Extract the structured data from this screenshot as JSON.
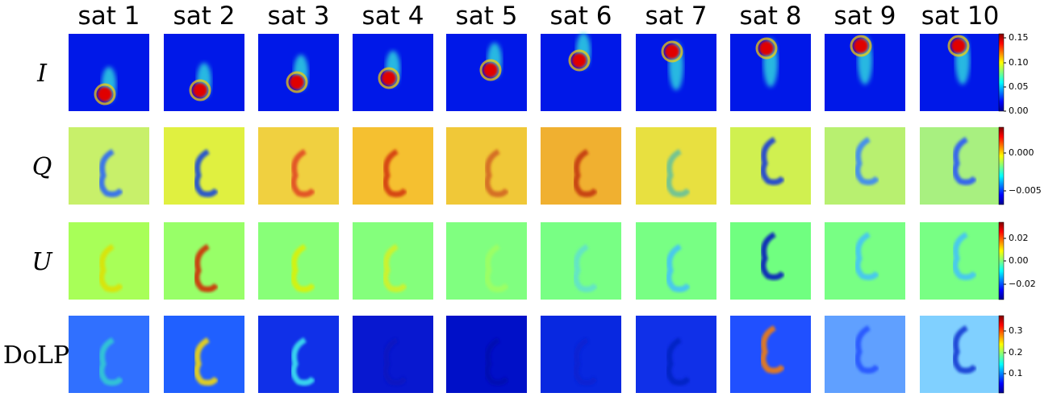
{
  "columns": [
    "sat 1",
    "sat 2",
    "sat 3",
    "sat 4",
    "sat 5",
    "sat 6",
    "sat 7",
    "sat 8",
    "sat 9",
    "sat 10"
  ],
  "rows": [
    {
      "label": "I",
      "colorbar_ticks": [
        "0.15",
        "0.10",
        "0.05",
        "0.00"
      ]
    },
    {
      "label": "Q",
      "colorbar_ticks": [
        "0.000",
        "−0.005"
      ]
    },
    {
      "label": "U",
      "colorbar_ticks": [
        "0.02",
        "0.00",
        "−0.02"
      ]
    },
    {
      "label": "DoLP",
      "colorbar_ticks": [
        "0.3",
        "0.2",
        "0.1"
      ]
    }
  ]
}
